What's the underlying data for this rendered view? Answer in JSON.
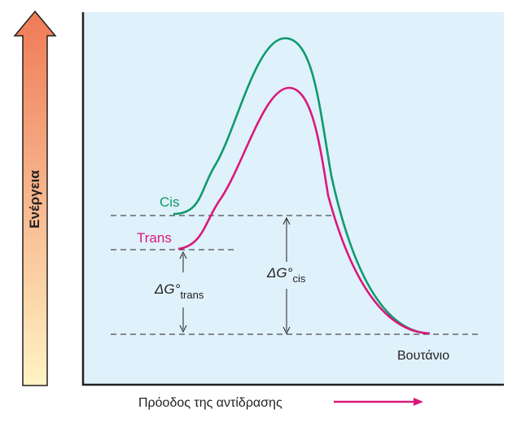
{
  "energy_axis": {
    "label": "Ενέργεια"
  },
  "progress_axis": {
    "label": "Πρόοδος της αντίδρασης"
  },
  "curves": {
    "cis": {
      "label": "Cis",
      "color": "#0f9a6b"
    },
    "trans": {
      "label": "Trans",
      "color": "#d9197c"
    }
  },
  "product": {
    "label": "Βουτάνιο"
  },
  "delta_g_trans": {
    "main": "ΔG°",
    "sub": "trans"
  },
  "delta_g_cis": {
    "main": "ΔG°",
    "sub": "cis"
  },
  "colors": {
    "plot_background": "#dff1fb",
    "arrow_gradient_top": "#ef7a56",
    "arrow_gradient_bottom": "#fff3c4",
    "progress_arrow": "#d9197c",
    "frame": "#231f20"
  }
}
